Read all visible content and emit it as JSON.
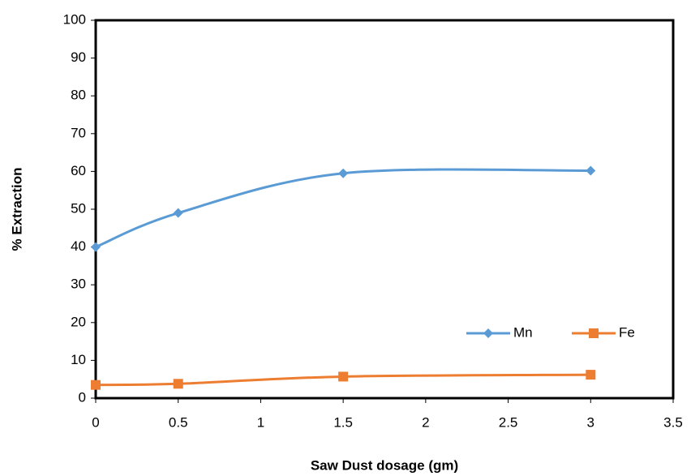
{
  "chart_data": {
    "type": "line",
    "x_label": "Saw Dust dosage (gm)",
    "y_label": "% Extraction",
    "x": [
      0,
      0.5,
      1.5,
      3
    ],
    "series": [
      {
        "name": "Mn",
        "color": "#5b9bd5",
        "marker": "diamond",
        "values": [
          40,
          49,
          59.5,
          60.2
        ]
      },
      {
        "name": "Fe",
        "color": "#ed7d31",
        "marker": "square",
        "values": [
          3.5,
          3.8,
          5.7,
          6.2
        ]
      }
    ],
    "xlim": [
      0,
      3.5
    ],
    "xticks": [
      0,
      0.5,
      1,
      1.5,
      2,
      2.5,
      3,
      3.5
    ],
    "ylim": [
      0,
      100
    ],
    "yticks": [
      0,
      10,
      20,
      30,
      40,
      50,
      60,
      70,
      80,
      90,
      100
    ],
    "smooth": true
  }
}
